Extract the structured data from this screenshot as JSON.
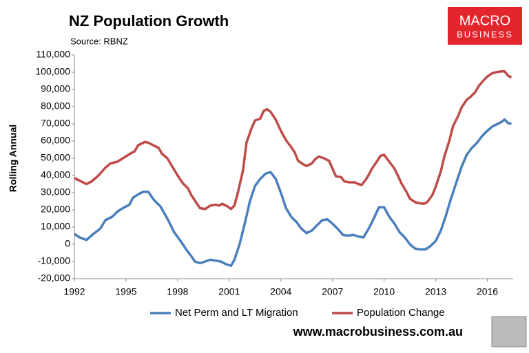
{
  "chart_data": {
    "type": "line",
    "title": "NZ Population Growth",
    "subtitle": "Source: RBNZ",
    "ylabel": "Rolling Annual",
    "logo": [
      "MACRO",
      "BUSINESS"
    ],
    "website": "www.macrobusiness.com.au",
    "xlim": [
      1992,
      2017.5
    ],
    "xticks": [
      1992,
      1995,
      1998,
      2001,
      2004,
      2007,
      2010,
      2013,
      2016
    ],
    "ylim": [
      -20000,
      110000
    ],
    "yticks": [
      {
        "value": -20000,
        "label": "-20,000"
      },
      {
        "value": -10000,
        "label": "-10,000"
      },
      0,
      {
        "value": 10000,
        "label": "10,000"
      },
      {
        "value": 20000,
        "label": "20,000"
      },
      {
        "value": 30000,
        "label": "30,000"
      },
      {
        "value": 40000,
        "label": "40,000"
      },
      {
        "value": 50000,
        "label": "50,000"
      },
      {
        "value": 60000,
        "label": "60,000"
      },
      {
        "value": 70000,
        "label": "70,000"
      },
      {
        "value": 80000,
        "label": "80,000"
      },
      {
        "value": 90000,
        "label": "90,000"
      },
      {
        "value": 100000,
        "label": "100,000"
      },
      {
        "value": 110000,
        "label": "110,000"
      }
    ],
    "grid": false,
    "legend": "bottom",
    "series": [
      {
        "name": "Net Perm and LT Migration",
        "color": "#4a7ebb",
        "x": [
          1992.0,
          1992.3,
          1992.7,
          1993.1,
          1993.5,
          1993.8,
          1994.2,
          1994.5,
          1994.9,
          1995.2,
          1995.4,
          1995.7,
          1996.0,
          1996.3,
          1996.6,
          1997.0,
          1997.4,
          1997.8,
          1998.2,
          1998.5,
          1998.8,
          1999.0,
          1999.3,
          1999.6,
          1999.9,
          2000.2,
          2000.5,
          2000.8,
          2001.1,
          2001.3,
          2001.6,
          2001.9,
          2002.2,
          2002.5,
          2002.8,
          2003.1,
          2003.4,
          2003.7,
          2004.0,
          2004.3,
          2004.6,
          2004.9,
          2005.2,
          2005.5,
          2005.8,
          2006.1,
          2006.4,
          2006.7,
          2007.0,
          2007.3,
          2007.6,
          2007.9,
          2008.2,
          2008.5,
          2008.8,
          2009.1,
          2009.4,
          2009.7,
          2010.0,
          2010.3,
          2010.6,
          2010.9,
          2011.2,
          2011.5,
          2011.8,
          2012.1,
          2012.4,
          2012.7,
          2013.0,
          2013.3,
          2013.6,
          2013.9,
          2014.2,
          2014.5,
          2014.8,
          2015.1,
          2015.4,
          2015.7,
          2016.0,
          2016.3,
          2016.6,
          2016.8,
          2017.0,
          2017.2,
          2017.4
        ],
        "values": [
          6000,
          4000,
          2500,
          6000,
          9000,
          14000,
          16000,
          19000,
          21500,
          23000,
          27000,
          29000,
          30500,
          30500,
          26000,
          22000,
          15000,
          7000,
          1500,
          -3000,
          -7000,
          -10000,
          -11000,
          -10000,
          -9000,
          -9500,
          -10000,
          -11500,
          -12500,
          -9000,
          0,
          12000,
          25000,
          34000,
          38000,
          41000,
          42000,
          38000,
          30000,
          21000,
          16000,
          13000,
          9000,
          6500,
          8000,
          11000,
          14000,
          14500,
          12000,
          9000,
          5500,
          5000,
          5500,
          4500,
          4000,
          9000,
          15000,
          21500,
          21500,
          16000,
          12000,
          7000,
          4000,
          0,
          -2500,
          -3000,
          -3000,
          -1000,
          2000,
          8000,
          17000,
          27000,
          36000,
          45000,
          52000,
          56000,
          59000,
          63000,
          66000,
          68500,
          70000,
          71000,
          72500,
          70500,
          70000
        ]
      },
      {
        "name": "Population Change",
        "color": "#be4b48",
        "x": [
          1992.0,
          1992.4,
          1992.7,
          1993.0,
          1993.4,
          1993.8,
          1994.1,
          1994.5,
          1994.9,
          1995.3,
          1995.5,
          1995.7,
          1996.1,
          1996.3,
          1996.6,
          1996.9,
          1997.1,
          1997.4,
          1997.7,
          1998.0,
          1998.3,
          1998.6,
          1998.8,
          1999.1,
          1999.3,
          1999.6,
          1999.9,
          2000.2,
          2000.4,
          2000.6,
          2000.9,
          2001.1,
          2001.3,
          2001.5,
          2001.8,
          2002.0,
          2002.3,
          2002.5,
          2002.8,
          2003.0,
          2003.2,
          2003.4,
          2003.7,
          2004.0,
          2004.3,
          2004.6,
          2004.8,
          2005.0,
          2005.3,
          2005.5,
          2005.8,
          2006.0,
          2006.2,
          2006.5,
          2006.8,
          2007.0,
          2007.2,
          2007.5,
          2007.7,
          2008.0,
          2008.3,
          2008.5,
          2008.7,
          2009.0,
          2009.3,
          2009.6,
          2009.8,
          2010.0,
          2010.3,
          2010.6,
          2010.8,
          2011.0,
          2011.3,
          2011.5,
          2011.8,
          2012.0,
          2012.3,
          2012.5,
          2012.8,
          2013.0,
          2013.3,
          2013.5,
          2013.8,
          2014.0,
          2014.3,
          2014.5,
          2014.8,
          2015.0,
          2015.3,
          2015.5,
          2015.8,
          2016.0,
          2016.3,
          2016.5,
          2016.8,
          2017.0,
          2017.2,
          2017.4
        ],
        "values": [
          38500,
          36500,
          35000,
          36500,
          40000,
          44500,
          47000,
          48000,
          50500,
          53000,
          54000,
          57500,
          59500,
          59000,
          57500,
          56000,
          52500,
          50000,
          45000,
          40000,
          35500,
          32500,
          28500,
          24000,
          21000,
          20500,
          22500,
          23000,
          22500,
          23500,
          22000,
          20500,
          22500,
          30000,
          43000,
          59000,
          67500,
          72000,
          73000,
          77500,
          78500,
          77000,
          72500,
          66000,
          60500,
          56500,
          53500,
          48500,
          46500,
          45500,
          47000,
          49500,
          51000,
          50000,
          48500,
          44000,
          39500,
          39000,
          36500,
          36000,
          36000,
          35000,
          34500,
          38500,
          44000,
          48500,
          51500,
          52000,
          48000,
          44000,
          40000,
          35500,
          30500,
          26500,
          24500,
          24000,
          23500,
          24500,
          28500,
          33500,
          42500,
          51000,
          60500,
          68500,
          74500,
          79500,
          84000,
          85500,
          88500,
          92000,
          95500,
          97500,
          99500,
          100000,
          100500,
          100500,
          98000,
          97000
        ]
      }
    ]
  }
}
